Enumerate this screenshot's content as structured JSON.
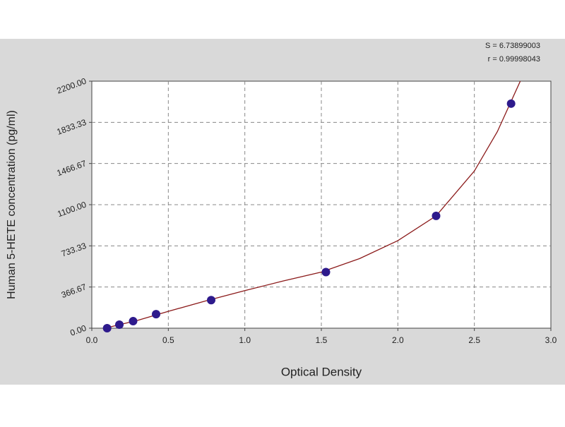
{
  "chart_data": {
    "type": "scatter",
    "annotations": [
      "S = 6.73899003",
      "r = 0.99998043"
    ],
    "x_label": "Optical Density",
    "y_label": "Human 5-HETE concentration (pg/ml)",
    "xlim": [
      0,
      3
    ],
    "ylim": [
      0,
      2200
    ],
    "xticks": [
      {
        "value": 0,
        "label": "0.0"
      },
      0.5,
      {
        "value": 1,
        "label": "1.0"
      },
      1.5,
      {
        "value": 2,
        "label": "2.0"
      },
      2.5,
      {
        "value": 3,
        "label": "3.0"
      }
    ],
    "yticks": [
      {
        "value": 0,
        "label": "0.00"
      },
      366.67,
      733.33,
      {
        "value": 1100,
        "label": "1100.00"
      },
      1466.67,
      1833.33,
      {
        "value": 2200,
        "label": "2200.00"
      }
    ],
    "grid": true,
    "series": [
      {
        "type": "scatter",
        "color": "#2e1a8c",
        "x": [
          0.1,
          0.18,
          0.27,
          0.42,
          0.78,
          1.53,
          2.25,
          2.74
        ],
        "values": [
          0,
          31.25,
          62.5,
          125,
          250,
          500,
          1000,
          2000
        ]
      },
      {
        "type": "line",
        "color": "#8b1a1a",
        "x": [
          0.1,
          0.3,
          0.5,
          0.75,
          1.0,
          1.25,
          1.5,
          1.75,
          2.0,
          2.25,
          2.5,
          2.65,
          2.8
        ],
        "values": [
          5,
          70,
          150,
          245,
          335,
          420,
          500,
          620,
          780,
          1000,
          1400,
          1750,
          2200
        ]
      }
    ]
  }
}
